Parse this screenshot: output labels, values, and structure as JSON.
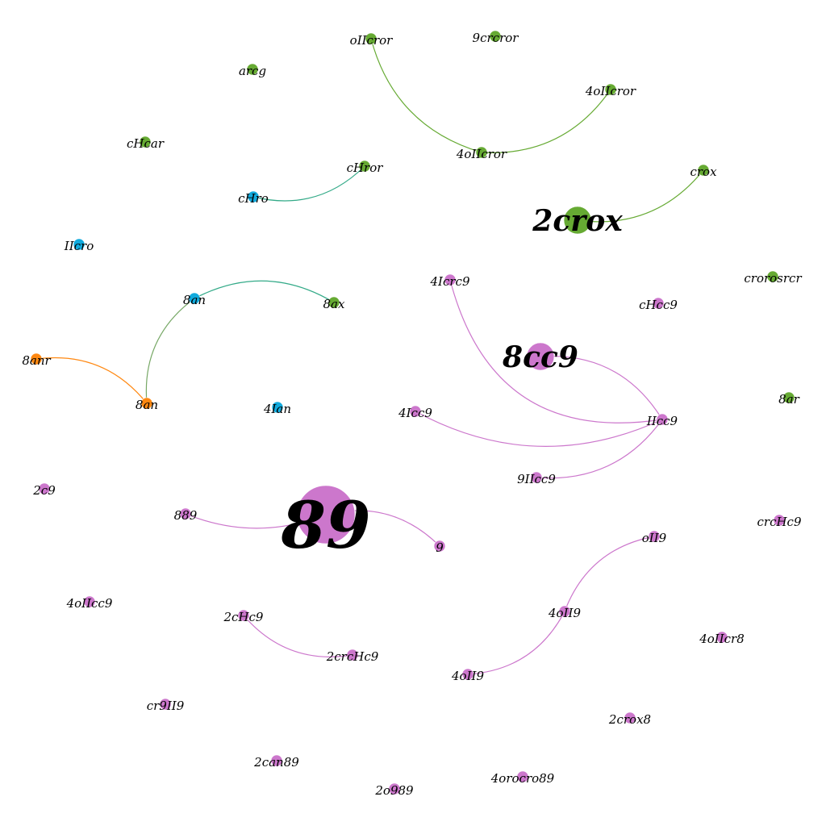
{
  "graph": {
    "colors": {
      "green": "#66aa33",
      "blue": "#11aadd",
      "orange": "#ff8811",
      "pink": "#cc77cc",
      "teal": "#33aa88",
      "olive": "#77a866"
    },
    "nodes": [
      {
        "id": "n1",
        "label": "oIIcror",
        "group": "green",
        "size": "small"
      },
      {
        "id": "n2",
        "label": "9crcror",
        "group": "green",
        "size": "small"
      },
      {
        "id": "n3",
        "label": "arcg",
        "group": "green",
        "size": "small"
      },
      {
        "id": "n4",
        "label": "4oIIcror",
        "group": "green",
        "size": "small"
      },
      {
        "id": "n5",
        "label": "cHcar",
        "group": "green",
        "size": "small"
      },
      {
        "id": "n6",
        "label": "4oIIcror",
        "group": "green",
        "size": "small"
      },
      {
        "id": "n7",
        "label": "cHror",
        "group": "green",
        "size": "small"
      },
      {
        "id": "n8",
        "label": "cHro",
        "group": "blue",
        "size": "small"
      },
      {
        "id": "n9",
        "label": "crox",
        "group": "green",
        "size": "small"
      },
      {
        "id": "n10",
        "label": "2crox",
        "group": "green",
        "size": "large"
      },
      {
        "id": "n11",
        "label": "IIcro",
        "group": "blue",
        "size": "small"
      },
      {
        "id": "n12",
        "label": "4Icrc9",
        "group": "pink",
        "size": "small"
      },
      {
        "id": "n13",
        "label": "crorosrcr",
        "group": "green",
        "size": "small"
      },
      {
        "id": "n14",
        "label": "8an",
        "group": "blue",
        "size": "small"
      },
      {
        "id": "n15",
        "label": "8ax",
        "group": "green",
        "size": "small"
      },
      {
        "id": "n16",
        "label": "cHcc9",
        "group": "pink",
        "size": "small"
      },
      {
        "id": "n17",
        "label": "8cc9",
        "group": "pink",
        "size": "large"
      },
      {
        "id": "n18",
        "label": "8anr",
        "group": "orange",
        "size": "small"
      },
      {
        "id": "n19",
        "label": "8ar",
        "group": "green",
        "size": "small"
      },
      {
        "id": "n20",
        "label": "8an",
        "group": "orange",
        "size": "small"
      },
      {
        "id": "n21",
        "label": "4Ian",
        "group": "blue",
        "size": "small"
      },
      {
        "id": "n22",
        "label": "4Icc9",
        "group": "pink",
        "size": "small"
      },
      {
        "id": "n23",
        "label": "IIcc9",
        "group": "pink",
        "size": "small"
      },
      {
        "id": "n24",
        "label": "9IIcc9",
        "group": "pink",
        "size": "small"
      },
      {
        "id": "n25",
        "label": "2c9",
        "group": "pink",
        "size": "small"
      },
      {
        "id": "n26",
        "label": "889",
        "group": "pink",
        "size": "small"
      },
      {
        "id": "n27",
        "label": "89",
        "group": "pink",
        "size": "huge"
      },
      {
        "id": "n28",
        "label": "crcHc9",
        "group": "pink",
        "size": "small"
      },
      {
        "id": "n29",
        "label": "9",
        "group": "pink",
        "size": "small"
      },
      {
        "id": "n30",
        "label": "oII9",
        "group": "pink",
        "size": "small"
      },
      {
        "id": "n31",
        "label": "4oIIcc9",
        "group": "pink",
        "size": "small"
      },
      {
        "id": "n32",
        "label": "2cHc9",
        "group": "pink",
        "size": "small"
      },
      {
        "id": "n33",
        "label": "4oII9",
        "group": "pink",
        "size": "small"
      },
      {
        "id": "n34",
        "label": "4oIIcr8",
        "group": "pink",
        "size": "small"
      },
      {
        "id": "n35",
        "label": "2crcHc9",
        "group": "pink",
        "size": "small"
      },
      {
        "id": "n36",
        "label": "4oII9",
        "group": "pink",
        "size": "small"
      },
      {
        "id": "n37",
        "label": "cr9II9",
        "group": "pink",
        "size": "small"
      },
      {
        "id": "n38",
        "label": "2crox8",
        "group": "pink",
        "size": "small"
      },
      {
        "id": "n39",
        "label": "2can89",
        "group": "pink",
        "size": "small"
      },
      {
        "id": "n40",
        "label": "4orocro89",
        "group": "pink",
        "size": "small"
      },
      {
        "id": "n41",
        "label": "2o989",
        "group": "pink",
        "size": "small"
      }
    ],
    "edges": [
      {
        "source": "n1",
        "target": "n6",
        "color": "green"
      },
      {
        "source": "n6",
        "target": "n4",
        "color": "green"
      },
      {
        "source": "n8",
        "target": "n7",
        "color": "teal"
      },
      {
        "source": "n10",
        "target": "n9",
        "color": "green"
      },
      {
        "source": "n14",
        "target": "n15",
        "color": "teal"
      },
      {
        "source": "n14",
        "target": "n20",
        "color": "olive"
      },
      {
        "source": "n18",
        "target": "n20",
        "color": "orange"
      },
      {
        "source": "n12",
        "target": "n23",
        "color": "pink"
      },
      {
        "source": "n17",
        "target": "n23",
        "color": "pink"
      },
      {
        "source": "n22",
        "target": "n23",
        "color": "pink"
      },
      {
        "source": "n24",
        "target": "n23",
        "color": "pink"
      },
      {
        "source": "n26",
        "target": "n27",
        "color": "pink"
      },
      {
        "source": "n27",
        "target": "n29",
        "color": "pink"
      },
      {
        "source": "n30",
        "target": "n33",
        "color": "pink"
      },
      {
        "source": "n33",
        "target": "n36",
        "color": "pink"
      },
      {
        "source": "n32",
        "target": "n35",
        "color": "pink"
      }
    ]
  }
}
